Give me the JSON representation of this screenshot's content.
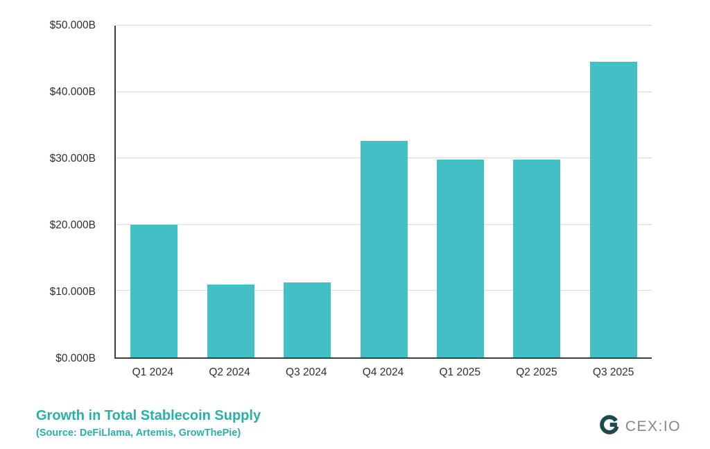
{
  "chart_data": {
    "type": "bar",
    "categories": [
      "Q1 2024",
      "Q2 2024",
      "Q3 2024",
      "Q4 2024",
      "Q1 2025",
      "Q2 2025",
      "Q3 2025"
    ],
    "values": [
      20.0,
      11.0,
      11.3,
      32.6,
      29.8,
      29.8,
      44.6
    ],
    "title": "Growth in Total Stablecoin Supply",
    "subtitle": "(Source: DeFiLlama, Artemis, GrowThePie)",
    "xlabel": "",
    "ylabel": "",
    "ylim": [
      0,
      50
    ],
    "ytick_step": 10,
    "ytick_labels": [
      "$0.000B",
      "$10.000B",
      "$20.000B",
      "$30.000B",
      "$40.000B",
      "$50.000B"
    ],
    "grid": true,
    "legend": "none",
    "bar_color": "#43bfc6"
  },
  "footer": {
    "title": "Growth in Total Stablecoin Supply",
    "subtitle": "(Source: DeFiLlama, Artemis, GrowThePie)",
    "logo_text": "CEX:IO"
  },
  "colors": {
    "bar": "#43bfc6",
    "title_text": "#29b0a7",
    "axis_line": "#3d3d3d",
    "gridline": "#d9d9d9",
    "logo_mark": "#1d4a4d",
    "logo_text": "#7e8a8d"
  }
}
